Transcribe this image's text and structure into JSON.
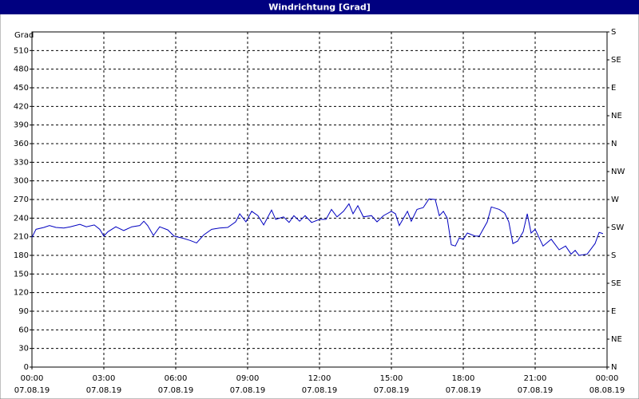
{
  "chart_data": {
    "type": "line",
    "title": "Windrichtung [Grad]",
    "ylabel": "Grad",
    "xlim": [
      0,
      24
    ],
    "ylim": [
      0,
      540
    ],
    "y2lim": [
      0,
      540
    ],
    "grid": true,
    "xticks": [
      {
        "value": 0,
        "label": "00:00",
        "date": "07.08.19"
      },
      {
        "value": 3,
        "label": "03:00",
        "date": "07.08.19"
      },
      {
        "value": 6,
        "label": "06:00",
        "date": "07.08.19"
      },
      {
        "value": 9,
        "label": "09:00",
        "date": "07.08.19"
      },
      {
        "value": 12,
        "label": "12:00",
        "date": "07.08.19"
      },
      {
        "value": 15,
        "label": "15:00",
        "date": "07.08.19"
      },
      {
        "value": 18,
        "label": "18:00",
        "date": "07.08.19"
      },
      {
        "value": 21,
        "label": "21:00",
        "date": "07.08.19"
      },
      {
        "value": 24,
        "label": "00:00",
        "date": "08.08.19"
      }
    ],
    "yticks": [
      0,
      30,
      60,
      90,
      120,
      150,
      180,
      210,
      240,
      270,
      300,
      330,
      360,
      390,
      420,
      450,
      480,
      510
    ],
    "y2ticks": [
      {
        "value": 0,
        "label": "N"
      },
      {
        "value": 45,
        "label": "NE"
      },
      {
        "value": 90,
        "label": "E"
      },
      {
        "value": 135,
        "label": "SE"
      },
      {
        "value": 180,
        "label": "S"
      },
      {
        "value": 225,
        "label": "SW"
      },
      {
        "value": 270,
        "label": "W"
      },
      {
        "value": 315,
        "label": "NW"
      },
      {
        "value": 360,
        "label": "N"
      },
      {
        "value": 405,
        "label": "NE"
      },
      {
        "value": 450,
        "label": "E"
      },
      {
        "value": 495,
        "label": "SE"
      },
      {
        "value": 540,
        "label": "S"
      }
    ],
    "series": [
      {
        "name": "Windrichtung",
        "color": "#0000c0",
        "x": [
          0,
          0.17,
          0.5,
          0.73,
          1,
          1.33,
          1.6,
          2,
          2.27,
          2.6,
          2.83,
          3,
          3.17,
          3.5,
          3.83,
          4.17,
          4.5,
          4.67,
          4.83,
          5.07,
          5.33,
          5.67,
          5.93,
          6.27,
          6.6,
          6.87,
          7.17,
          7.5,
          7.83,
          8.17,
          8.5,
          8.67,
          8.93,
          9.17,
          9.43,
          9.67,
          10,
          10.17,
          10.5,
          10.73,
          10.93,
          11.17,
          11.4,
          11.67,
          12,
          12.27,
          12.5,
          12.73,
          13,
          13.23,
          13.4,
          13.6,
          13.83,
          14.17,
          14.4,
          14.67,
          15,
          15.17,
          15.33,
          15.67,
          15.83,
          16.07,
          16.33,
          16.57,
          16.83,
          17,
          17.17,
          17.33,
          17.5,
          17.67,
          17.83,
          18,
          18.17,
          18.5,
          18.67,
          19,
          19.17,
          19.5,
          19.73,
          19.9,
          20.07,
          20.27,
          20.5,
          20.67,
          20.83,
          21,
          21.17,
          21.33,
          21.67,
          22,
          22.27,
          22.5,
          22.67,
          22.83,
          23.17,
          23.5,
          23.67,
          23.83
        ],
        "values": [
          209,
          222,
          225,
          228,
          225,
          224,
          226,
          230,
          226,
          229,
          222,
          211,
          218,
          226,
          220,
          226,
          228,
          235,
          228,
          212,
          226,
          221,
          211,
          208,
          204,
          200,
          213,
          222,
          224,
          225,
          234,
          247,
          234,
          251,
          244,
          229,
          253,
          238,
          242,
          233,
          244,
          235,
          244,
          233,
          238,
          238,
          254,
          242,
          251,
          263,
          247,
          260,
          242,
          244,
          234,
          244,
          251,
          247,
          228,
          251,
          235,
          254,
          257,
          271,
          270,
          244,
          251,
          240,
          197,
          195,
          208,
          206,
          216,
          211,
          211,
          234,
          258,
          254,
          248,
          234,
          199,
          203,
          218,
          247,
          216,
          222,
          208,
          195,
          206,
          189,
          195,
          182,
          188,
          180,
          182,
          199,
          217,
          215
        ]
      }
    ]
  }
}
